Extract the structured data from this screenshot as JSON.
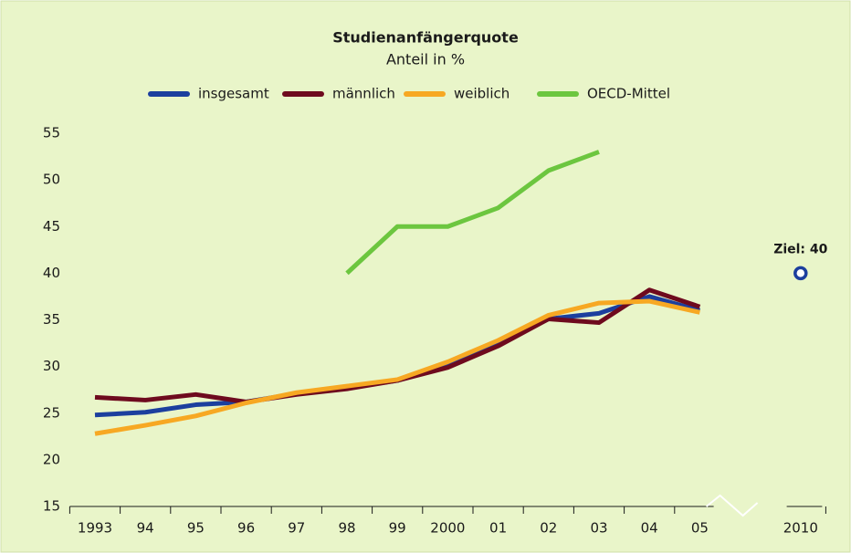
{
  "chart_data": {
    "type": "line",
    "title": "Studienanfängerquote",
    "subtitle": "Anteil in %",
    "categories": [
      "1993",
      "94",
      "95",
      "96",
      "97",
      "98",
      "99",
      "2000",
      "01",
      "02",
      "03",
      "04",
      "05",
      null,
      "2010"
    ],
    "series": [
      {
        "name": "insgesamt",
        "color": "#1c3f9e",
        "values": [
          24.8,
          25.1,
          25.9,
          26.2,
          27.1,
          27.7,
          28.5,
          30.2,
          32.5,
          35.1,
          35.7,
          37.5,
          36.0,
          null,
          null
        ]
      },
      {
        "name": "männlich",
        "color": "#6e0a1e",
        "values": [
          26.7,
          26.4,
          27.0,
          26.2,
          27.0,
          27.6,
          28.5,
          29.9,
          32.2,
          35.1,
          34.7,
          38.2,
          36.4,
          null,
          null
        ]
      },
      {
        "name": "weiblich",
        "color": "#f7a823",
        "values": [
          22.8,
          23.7,
          24.7,
          26.1,
          27.2,
          27.9,
          28.6,
          30.5,
          32.8,
          35.5,
          36.8,
          37.0,
          35.8,
          null,
          null
        ]
      },
      {
        "name": "OECD-Mittel",
        "color": "#6cc63f",
        "values": [
          null,
          null,
          null,
          null,
          null,
          40,
          45,
          45,
          47,
          51,
          53,
          null,
          null,
          null,
          null
        ]
      }
    ],
    "annotation": {
      "text": "Ziel: 40",
      "category": 14,
      "value": 40,
      "color": "#1c3f9e"
    },
    "ylim": [
      15,
      55
    ],
    "yticks": [
      15,
      20,
      25,
      30,
      35,
      40,
      45,
      50,
      55
    ],
    "grid": false
  }
}
